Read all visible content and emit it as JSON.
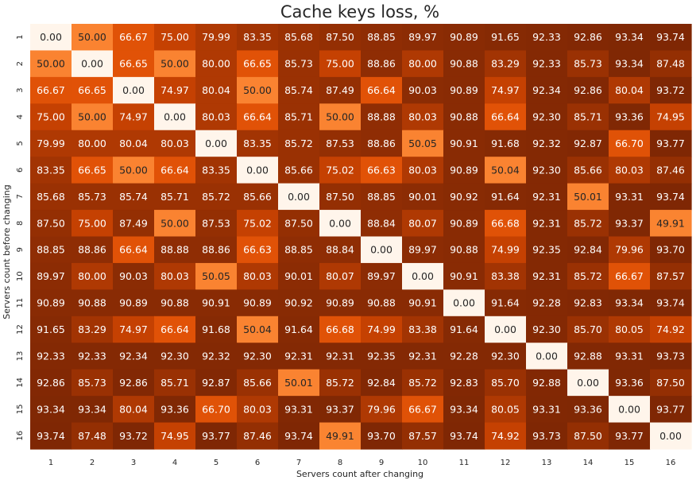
{
  "chart_data": {
    "type": "heatmap",
    "title": "Cache keys loss, %",
    "xlabel": "Servers count after changing",
    "ylabel": "Servers count before changing",
    "x_categories": [
      "1",
      "2",
      "3",
      "4",
      "5",
      "6",
      "7",
      "8",
      "9",
      "10",
      "11",
      "12",
      "13",
      "14",
      "15",
      "16"
    ],
    "y_categories": [
      "1",
      "2",
      "3",
      "4",
      "5",
      "6",
      "7",
      "8",
      "9",
      "10",
      "11",
      "12",
      "13",
      "14",
      "15",
      "16"
    ],
    "value_range": [
      0,
      93.77
    ],
    "colormap": "Oranges",
    "colorbar": false,
    "gridlines": false,
    "values": [
      [
        0.0,
        50.0,
        66.67,
        75.0,
        79.99,
        83.35,
        85.68,
        87.5,
        88.85,
        89.97,
        90.89,
        91.65,
        92.33,
        92.86,
        93.34,
        93.74
      ],
      [
        50.0,
        0.0,
        66.65,
        50.0,
        80.0,
        66.65,
        85.73,
        75.0,
        88.86,
        80.0,
        90.88,
        83.29,
        92.33,
        85.73,
        93.34,
        87.48
      ],
      [
        66.67,
        66.65,
        0.0,
        74.97,
        80.04,
        50.0,
        85.74,
        87.49,
        66.64,
        90.03,
        90.89,
        74.97,
        92.34,
        92.86,
        80.04,
        93.72
      ],
      [
        75.0,
        50.0,
        74.97,
        0.0,
        80.03,
        66.64,
        85.71,
        50.0,
        88.88,
        80.03,
        90.88,
        66.64,
        92.3,
        85.71,
        93.36,
        74.95
      ],
      [
        79.99,
        80.0,
        80.04,
        80.03,
        0.0,
        83.35,
        85.72,
        87.53,
        88.86,
        50.05,
        90.91,
        91.68,
        92.32,
        92.87,
        66.7,
        93.77
      ],
      [
        83.35,
        66.65,
        50.0,
        66.64,
        83.35,
        0.0,
        85.66,
        75.02,
        66.63,
        80.03,
        90.89,
        50.04,
        92.3,
        85.66,
        80.03,
        87.46
      ],
      [
        85.68,
        85.73,
        85.74,
        85.71,
        85.72,
        85.66,
        0.0,
        87.5,
        88.85,
        90.01,
        90.92,
        91.64,
        92.31,
        50.01,
        93.31,
        93.74
      ],
      [
        87.5,
        75.0,
        87.49,
        50.0,
        87.53,
        75.02,
        87.5,
        0.0,
        88.84,
        80.07,
        90.89,
        66.68,
        92.31,
        85.72,
        93.37,
        49.91
      ],
      [
        88.85,
        88.86,
        66.64,
        88.88,
        88.86,
        66.63,
        88.85,
        88.84,
        0.0,
        89.97,
        90.88,
        74.99,
        92.35,
        92.84,
        79.96,
        93.7
      ],
      [
        89.97,
        80.0,
        90.03,
        80.03,
        50.05,
        80.03,
        90.01,
        80.07,
        89.97,
        0.0,
        90.91,
        83.38,
        92.31,
        85.72,
        66.67,
        87.57
      ],
      [
        90.89,
        90.88,
        90.89,
        90.88,
        90.91,
        90.89,
        90.92,
        90.89,
        90.88,
        90.91,
        0.0,
        91.64,
        92.28,
        92.83,
        93.34,
        93.74
      ],
      [
        91.65,
        83.29,
        74.97,
        66.64,
        91.68,
        50.04,
        91.64,
        66.68,
        74.99,
        83.38,
        91.64,
        0.0,
        92.3,
        85.7,
        80.05,
        74.92
      ],
      [
        92.33,
        92.33,
        92.34,
        92.3,
        92.32,
        92.3,
        92.31,
        92.31,
        92.35,
        92.31,
        92.28,
        92.3,
        0.0,
        92.88,
        93.31,
        93.73
      ],
      [
        92.86,
        85.73,
        92.86,
        85.71,
        92.87,
        85.66,
        50.01,
        85.72,
        92.84,
        85.72,
        92.83,
        85.7,
        92.88,
        0.0,
        93.36,
        87.5
      ],
      [
        93.34,
        93.34,
        80.04,
        93.36,
        66.7,
        80.03,
        93.31,
        93.37,
        79.96,
        66.67,
        93.34,
        80.05,
        93.31,
        93.36,
        0.0,
        93.77
      ],
      [
        93.74,
        87.48,
        93.72,
        74.95,
        93.77,
        87.46,
        93.74,
        49.91,
        93.7,
        87.57,
        93.74,
        74.92,
        93.73,
        87.5,
        93.77,
        0.0
      ]
    ]
  }
}
